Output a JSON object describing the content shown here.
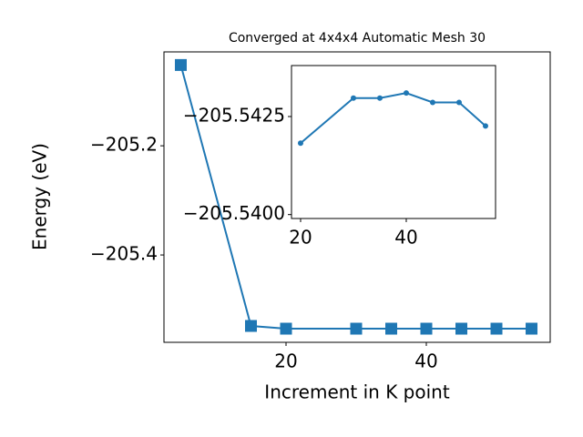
{
  "chart_data": [
    {
      "type": "line",
      "title": "Converged at 4x4x4 Automatic Mesh 30",
      "x_label": "Increment in K point",
      "y_label": "Energy (eV)",
      "marker": "square",
      "x": [
        5,
        15,
        20,
        30,
        35,
        40,
        45,
        50,
        55
      ],
      "series": [
        {
          "color": "#1f77b4",
          "values": [
            -205.052,
            -205.53,
            -205.535,
            -205.535,
            -205.535,
            -205.535,
            -205.535,
            -205.535,
            -205.535
          ]
        }
      ],
      "xlim": [
        2.6,
        57.66
      ],
      "xticks": [
        20,
        40
      ],
      "ylim": [
        -205.56,
        -205.028
      ],
      "yticks": [
        {
          "value": -205.4,
          "label": "−205.4"
        },
        {
          "value": -205.2,
          "label": "−205.2"
        }
      ]
    },
    {
      "type": "line",
      "marker": "circle",
      "x": [
        20,
        30,
        35,
        40,
        45,
        50,
        55
      ],
      "series": [
        {
          "color": "#1f77b4",
          "values": [
            -205.54182,
            -205.54297,
            -205.54297,
            -205.5431,
            -205.54286,
            -205.54286,
            -205.54226
          ]
        }
      ],
      "xlim": [
        18.28,
        56.9
      ],
      "xticks": [
        20,
        40
      ],
      "ylim": [
        -205.5399,
        -205.5438
      ],
      "yticks": [
        {
          "value": -205.54,
          "label": "−205.5400"
        },
        {
          "value": -205.5425,
          "label": "−205.5425"
        }
      ]
    }
  ]
}
